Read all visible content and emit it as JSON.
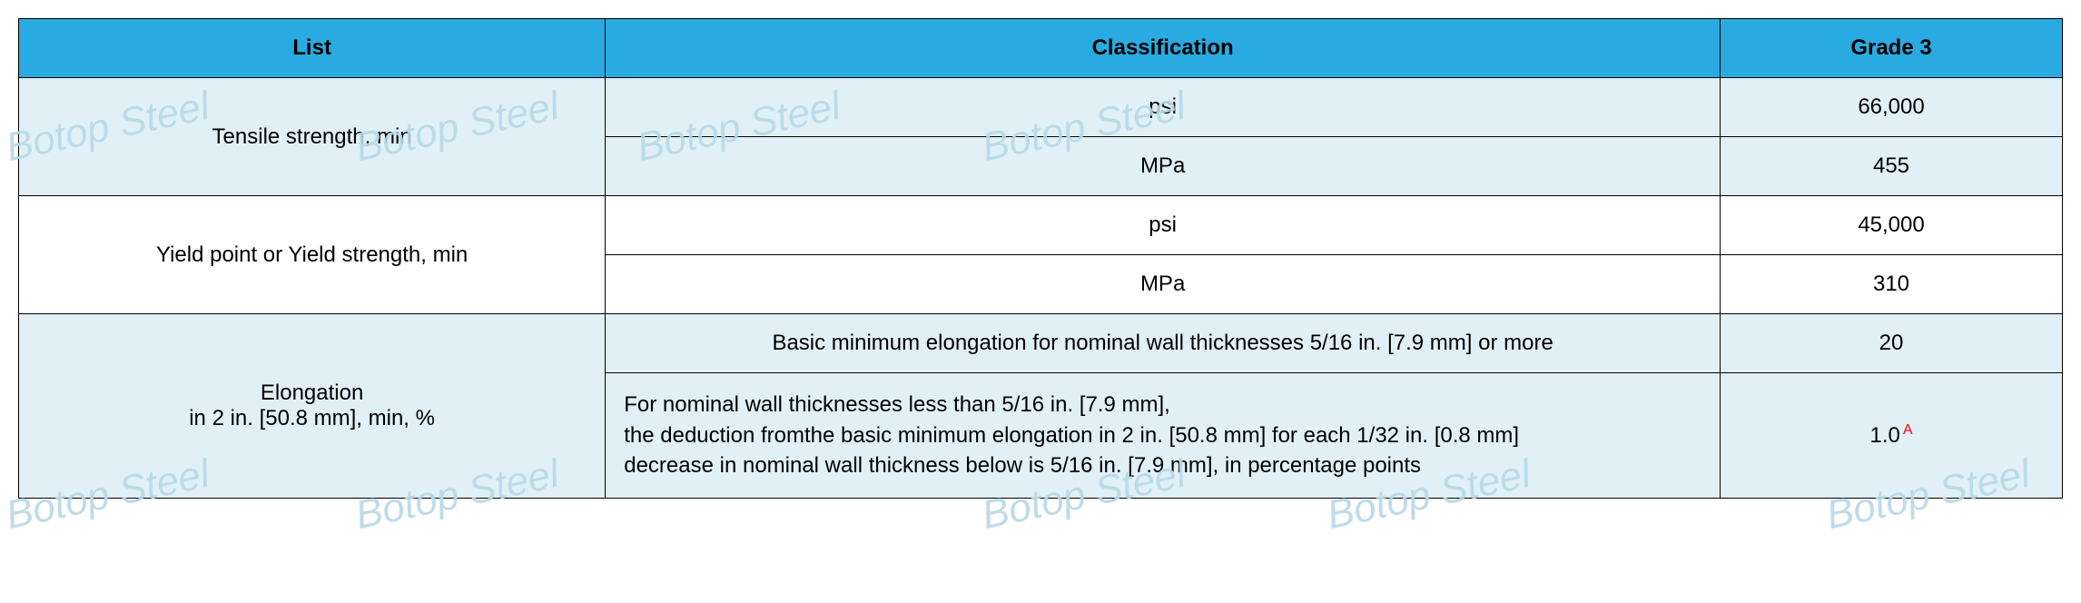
{
  "watermark_text": "Botop Steel",
  "table": {
    "header_bg": "#29abe2",
    "tint_bg": "#e1f0f7",
    "white_bg": "#ffffff",
    "border_color": "#000000",
    "columns": {
      "list": "List",
      "classification": "Classification",
      "grade": "Grade 3"
    },
    "rows": {
      "tensile": {
        "label": "Tensile strength, min",
        "psi_label": "psi",
        "psi_value": "66,000",
        "mpa_label": "MPa",
        "mpa_value": "455"
      },
      "yield": {
        "label": "Yield point or Yield strength, min",
        "psi_label": "psi",
        "psi_value": "45,000",
        "mpa_label": "MPa",
        "mpa_value": "310"
      },
      "elongation": {
        "label": "Elongation\nin 2 in. [50.8 mm], min, %",
        "basic_label": "Basic minimum elongation for nominal wall thicknesses 5/16 in. [7.9 mm] or more",
        "basic_value": "20",
        "deduction_label": "For nominal wall thicknesses less than 5/16 in. [7.9 mm],\nthe deduction fromthe basic minimum elongation in 2 in. [50.8 mm] for each 1/32 in. [0.8 mm]\ndecrease in nominal wall thickness below is 5/16 in. [7.9 mm], in percentage points",
        "deduction_value": "1.0",
        "deduction_sup": "A"
      }
    }
  }
}
